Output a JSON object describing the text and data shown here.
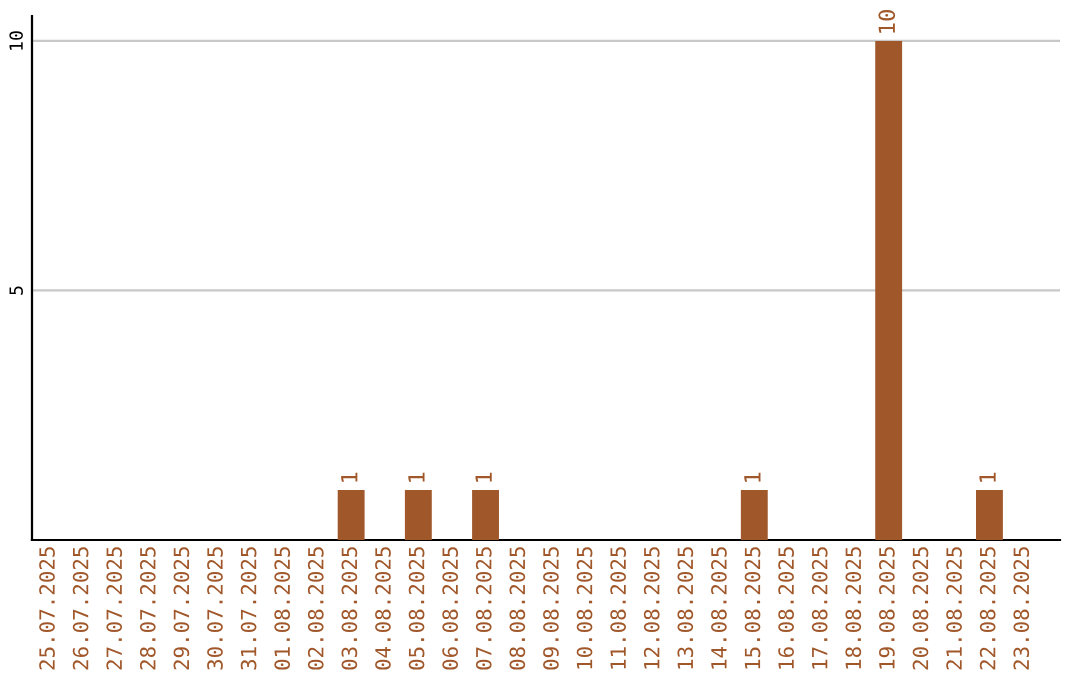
{
  "chart_data": {
    "type": "bar",
    "categories": [
      "25.07.2025",
      "26.07.2025",
      "27.07.2025",
      "28.07.2025",
      "29.07.2025",
      "30.07.2025",
      "31.07.2025",
      "01.08.2025",
      "02.08.2025",
      "03.08.2025",
      "04.08.2025",
      "05.08.2025",
      "06.08.2025",
      "07.08.2025",
      "08.08.2025",
      "09.08.2025",
      "10.08.2025",
      "11.08.2025",
      "12.08.2025",
      "13.08.2025",
      "14.08.2025",
      "15.08.2025",
      "16.08.2025",
      "17.08.2025",
      "18.08.2025",
      "19.08.2025",
      "20.08.2025",
      "21.08.2025",
      "22.08.2025",
      "23.08.2025"
    ],
    "values": [
      0,
      0,
      0,
      0,
      0,
      0,
      0,
      0,
      0,
      1,
      0,
      1,
      0,
      1,
      0,
      0,
      0,
      0,
      0,
      0,
      0,
      1,
      0,
      0,
      0,
      10,
      0,
      0,
      1,
      0
    ],
    "value_labels": [
      null,
      null,
      null,
      null,
      null,
      null,
      null,
      null,
      null,
      "1",
      null,
      "1",
      null,
      "1",
      null,
      null,
      null,
      null,
      null,
      null,
      null,
      "1",
      null,
      null,
      null,
      "10",
      null,
      null,
      "1",
      null
    ],
    "color": "#a0572a",
    "ylim": [
      0,
      10.5
    ],
    "yticks": [
      5,
      10
    ],
    "grid": "y"
  }
}
